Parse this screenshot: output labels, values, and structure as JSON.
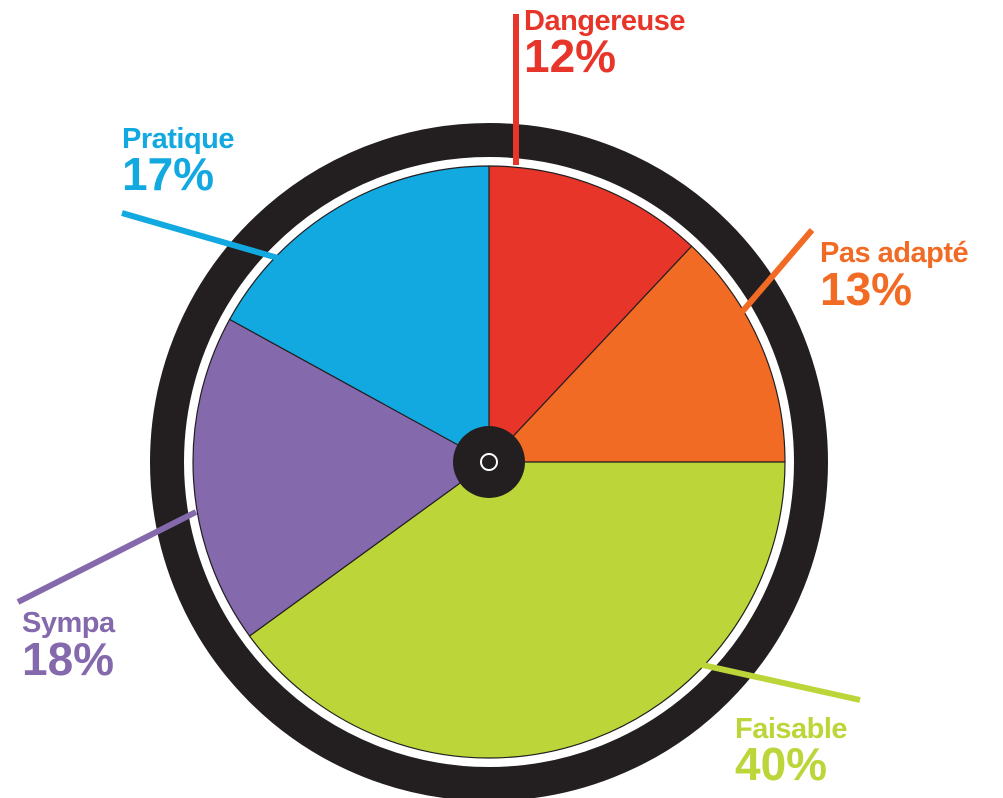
{
  "chart_data": {
    "type": "pie",
    "categories": [
      "Dangereuse",
      "Pas adapté",
      "Faisable",
      "Sympa",
      "Pratique"
    ],
    "values": [
      12,
      13,
      40,
      18,
      17
    ],
    "value_labels": [
      "12%",
      "13%",
      "40%",
      "18%",
      "17%"
    ],
    "colors": [
      "#e8352a",
      "#f26b24",
      "#bcd63a",
      "#8569ad",
      "#12a8e0"
    ]
  }
}
